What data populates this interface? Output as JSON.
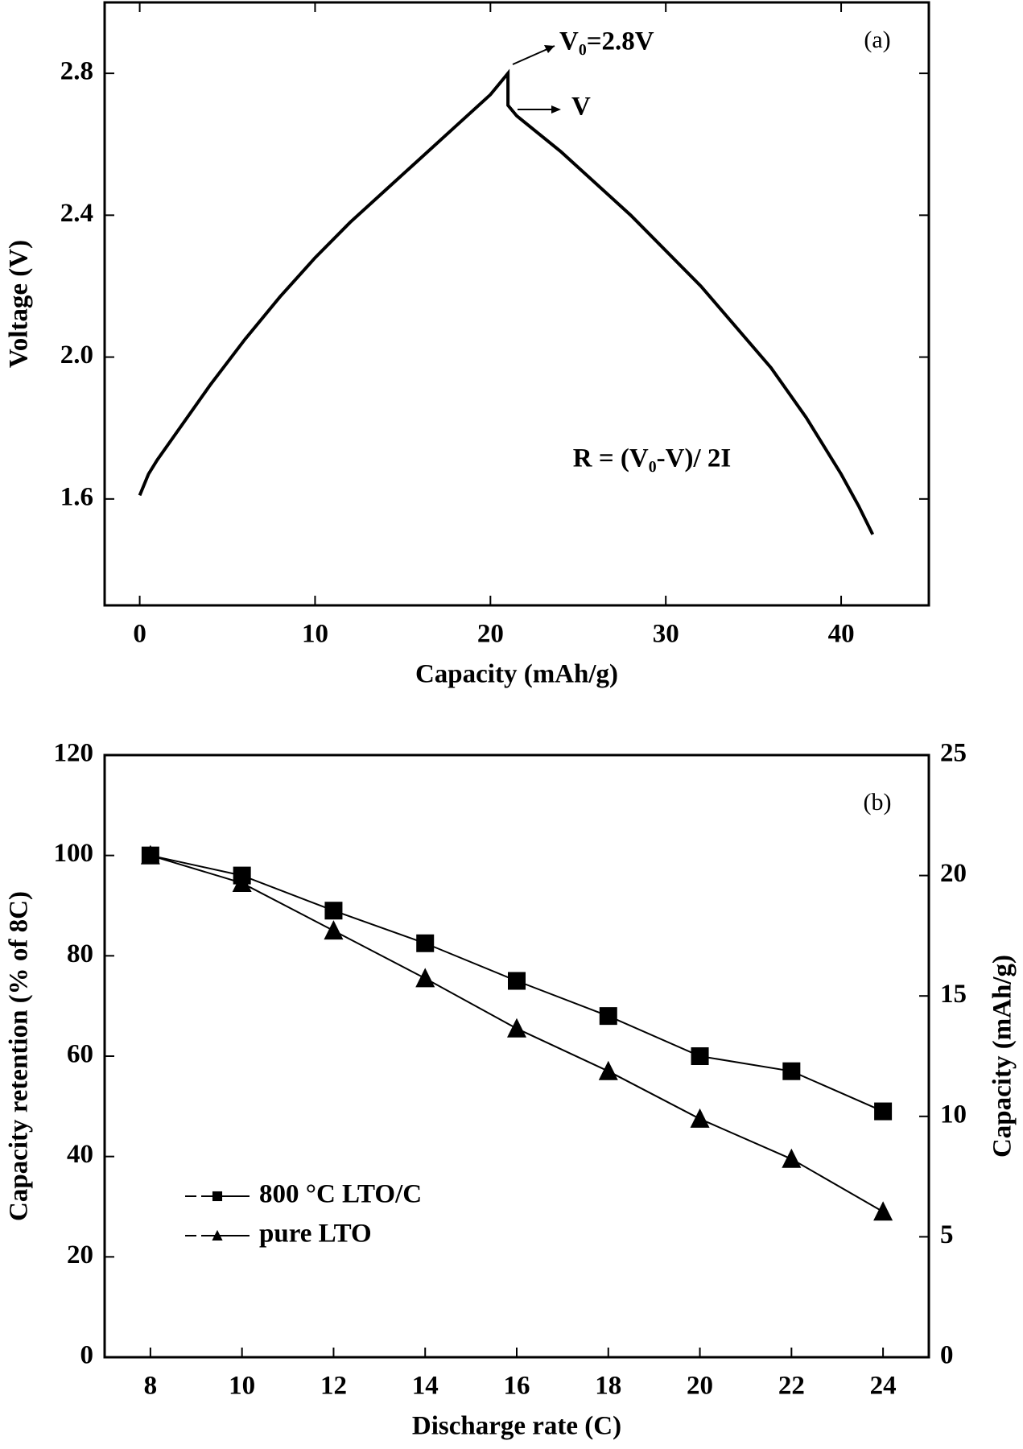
{
  "chart_data": [
    {
      "type": "line",
      "xlabel": "Capacity (mAh/g)",
      "ylabel": "Voltage (V)",
      "annotations": [
        "(a)",
        "V₀=2.8V",
        "V",
        "R = (V₀-V)/ 2I"
      ],
      "x": [
        0,
        0.5,
        1,
        2,
        4,
        6,
        8,
        10,
        12,
        14,
        16,
        18,
        20,
        21,
        21,
        21.5,
        24,
        28,
        32,
        36,
        38,
        40,
        41,
        41.8
      ],
      "series": [
        {
          "color": "#000000",
          "values": [
            1.61,
            1.67,
            1.71,
            1.78,
            1.92,
            2.05,
            2.17,
            2.28,
            2.38,
            2.47,
            2.56,
            2.65,
            2.74,
            2.8,
            2.71,
            2.68,
            2.58,
            2.4,
            2.2,
            1.97,
            1.83,
            1.67,
            1.58,
            1.5
          ]
        }
      ],
      "xlim": [
        -2,
        45
      ],
      "xticks": [
        0,
        10,
        20,
        30,
        40
      ],
      "ylim": [
        1.3,
        3.0
      ],
      "yticks": [
        1.6,
        {
          "value": 2,
          "label": "2.0"
        },
        2.4,
        2.8
      ]
    },
    {
      "type": "line",
      "xlabel": "Discharge rate (C)",
      "ylabel": "Capacity retention (% of 8C)",
      "y2label": "Capacity (mAh/g)",
      "annotations": [
        "(b)"
      ],
      "x": [
        8,
        10,
        12,
        14,
        16,
        18,
        20,
        22,
        24
      ],
      "series": [
        {
          "name": "800 °C LTO/C",
          "color": "#000000",
          "marker": "square",
          "values": [
            100,
            96,
            89,
            82.5,
            75,
            68,
            60,
            57,
            49
          ]
        },
        {
          "name": "pure LTO",
          "color": "#000000",
          "marker": "triangle",
          "values": [
            100,
            94.5,
            85,
            75.5,
            65.5,
            57,
            47.5,
            39.5,
            29
          ]
        }
      ],
      "xlim": [
        7,
        25
      ],
      "xticks": [
        8,
        10,
        12,
        14,
        16,
        18,
        20,
        22,
        24
      ],
      "ylim": [
        0,
        120
      ],
      "yticks": [
        0,
        20,
        40,
        60,
        80,
        100,
        120
      ],
      "y2lim": [
        0,
        25
      ],
      "y2ticks": [
        0,
        5,
        10,
        15,
        20,
        25
      ],
      "legend": "lower left"
    }
  ]
}
